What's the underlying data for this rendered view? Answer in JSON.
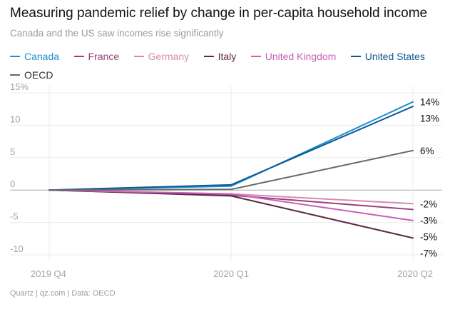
{
  "header": {
    "title": "Measuring pandemic relief by change in per-capita household income",
    "subtitle": "Canada and the US saw incomes rise significantly"
  },
  "footer": {
    "source": "Quartz | qz.com | Data: OECD"
  },
  "chart_data": {
    "type": "line",
    "title": "Measuring pandemic relief by change in per-capita household income",
    "subtitle": "Canada and the US saw incomes rise significantly",
    "xlabel": "",
    "ylabel": "",
    "categories": [
      "2019 Q4",
      "2020 Q1",
      "2020 Q2"
    ],
    "ylim": [
      -10,
      15
    ],
    "yticks": [
      {
        "value": 15,
        "label": "15%"
      },
      {
        "value": 10,
        "label": "10"
      },
      {
        "value": 5,
        "label": "5"
      },
      {
        "value": 0,
        "label": "0"
      },
      {
        "value": -5,
        "label": "-5"
      },
      {
        "value": -10,
        "label": "-10"
      }
    ],
    "grid": true,
    "legend_position": "top",
    "series": [
      {
        "name": "Canada",
        "color": "#1f8fd1",
        "values": [
          0,
          0.6,
          13.6
        ],
        "end_label": "14%"
      },
      {
        "name": "France",
        "color": "#9b3f74",
        "values": [
          0,
          -0.8,
          -3.0
        ],
        "end_label": "-3%"
      },
      {
        "name": "Germany",
        "color": "#d48bb0",
        "values": [
          0,
          -0.6,
          -2.1
        ],
        "end_label": "-2%"
      },
      {
        "name": "Italy",
        "color": "#5e2a48",
        "values": [
          0,
          -0.9,
          -7.4
        ],
        "end_label": "-7%"
      },
      {
        "name": "United Kingdom",
        "color": "#c95fb8",
        "values": [
          0,
          -0.6,
          -4.7
        ],
        "end_label": "-5%"
      },
      {
        "name": "United States",
        "color": "#0d5a93",
        "values": [
          0,
          0.8,
          12.9
        ],
        "end_label": "13%"
      },
      {
        "name": "OECD",
        "color": "#676767",
        "values": [
          0,
          0.1,
          6.1
        ],
        "end_label": "6%"
      }
    ]
  }
}
